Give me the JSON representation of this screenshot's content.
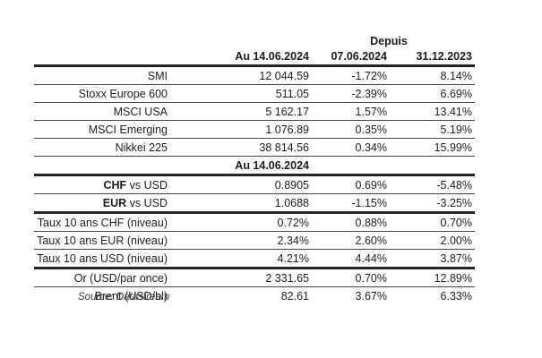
{
  "chart_data": {
    "type": "table",
    "group_header": {
      "depuis": "Depuis"
    },
    "columns": {
      "c1": "Au 14.06.2024",
      "c2": "07.06.2024",
      "c3": "31.12.2023"
    },
    "section2_title": "Au 14.06.2024",
    "rows1": [
      {
        "label": "SMI",
        "v1": "12 044.59",
        "v2": "-1.72%",
        "v3": "8.14%"
      },
      {
        "label": "Stoxx Europe 600",
        "v1": "511.05",
        "v2": "-2.39%",
        "v3": "6.69%"
      },
      {
        "label": "MSCI USA",
        "v1": "5 162.17",
        "v2": "1.57%",
        "v3": "13.41%"
      },
      {
        "label": "MSCI Emerging",
        "v1": "1 076.89",
        "v2": "0.35%",
        "v3": "5.19%"
      },
      {
        "label": "Nikkei 225",
        "v1": "38 814.56",
        "v2": "0.34%",
        "v3": "15.99%"
      }
    ],
    "rows2": [
      {
        "label_bold": "CHF",
        "label_rest": " vs USD",
        "v1": "0.8905",
        "v2": "0.69%",
        "v3": "-5.48%"
      },
      {
        "label_bold": "EUR",
        "label_rest": " vs USD",
        "v1": "1.0688",
        "v2": "-1.15%",
        "v3": "-3.25%"
      },
      {
        "label": "Taux 10 ans CHF (niveau)",
        "v1": "0.72%",
        "v2": "0.88%",
        "v3": "0.70%"
      },
      {
        "label": "Taux 10 ans EUR (niveau)",
        "v1": "2.34%",
        "v2": "2.60%",
        "v3": "2.00%"
      },
      {
        "label": "Taux 10 ans USD (niveau)",
        "v1": "4.21%",
        "v2": "4.44%",
        "v3": "3.87%"
      },
      {
        "label": "Or (USD/par once)",
        "v1": "2 331.65",
        "v2": "0.70%",
        "v3": "12.89%"
      },
      {
        "label": "Brent (USD/bl)",
        "v1": "82.61",
        "v2": "3.67%",
        "v3": "6.33%"
      }
    ],
    "source": "Source: Datastream",
    "layout": {
      "legend": "none",
      "grid": "horizontal-rules"
    },
    "colors": {
      "text": "#1d1d1d",
      "rule_thick": "#262626",
      "rule_thin": "#454545"
    }
  }
}
